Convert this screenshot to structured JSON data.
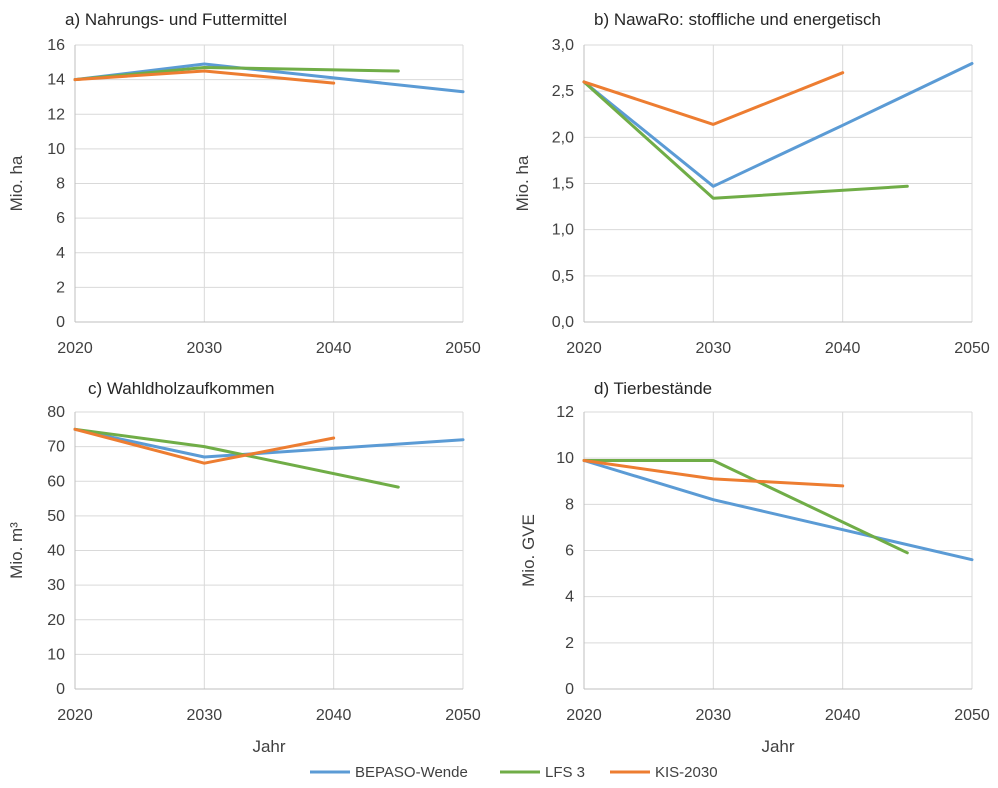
{
  "chart_data": [
    {
      "type": "line",
      "title": "a) Nahrungs- und Futtermittel",
      "ylabel": "Mio. ha",
      "xlabel": "",
      "xlim": [
        2020,
        2050
      ],
      "ylim": [
        0,
        16
      ],
      "xticks": [
        "2020",
        "2030",
        "2040",
        "2050"
      ],
      "yticks": [
        "0",
        "2",
        "4",
        "6",
        "8",
        "10",
        "12",
        "14",
        "16"
      ],
      "grid": true,
      "series": [
        {
          "name": "BEPASO-Wende",
          "x": [
            2020,
            2030,
            2040,
            2050
          ],
          "y": [
            14.0,
            14.9,
            14.1,
            13.3
          ]
        },
        {
          "name": "LFS 3",
          "x": [
            2020,
            2030,
            2045
          ],
          "y": [
            14.0,
            14.7,
            14.5
          ]
        },
        {
          "name": "KIS-2030",
          "x": [
            2020,
            2030,
            2040
          ],
          "y": [
            14.0,
            14.5,
            13.8
          ]
        }
      ]
    },
    {
      "type": "line",
      "title": "b) NawaRo: stoffliche und energetisch",
      "ylabel": "Mio. ha",
      "xlabel": "",
      "xlim": [
        2020,
        2050
      ],
      "ylim": [
        0,
        3
      ],
      "xticks": [
        "2020",
        "2030",
        "2040",
        "2050"
      ],
      "yticks": [
        "0,0",
        "0,5",
        "1,0",
        "1,5",
        "2,0",
        "2,5",
        "3,0"
      ],
      "grid": true,
      "series": [
        {
          "name": "BEPASO-Wende",
          "x": [
            2020,
            2030,
            2040,
            2050
          ],
          "y": [
            2.6,
            1.47,
            2.13,
            2.8
          ]
        },
        {
          "name": "LFS 3",
          "x": [
            2020,
            2030,
            2045
          ],
          "y": [
            2.6,
            1.34,
            1.47
          ]
        },
        {
          "name": "KIS-2030",
          "x": [
            2020,
            2030,
            2040
          ],
          "y": [
            2.6,
            2.14,
            2.7
          ]
        }
      ]
    },
    {
      "type": "line",
      "title": "c) Wahldholzaufkommen",
      "ylabel": "Mio. m³",
      "xlabel": "Jahr",
      "xlim": [
        2020,
        2050
      ],
      "ylim": [
        0,
        80
      ],
      "xticks": [
        "2020",
        "2030",
        "2040",
        "2050"
      ],
      "yticks": [
        "0",
        "10",
        "20",
        "30",
        "40",
        "50",
        "60",
        "70",
        "80"
      ],
      "grid": true,
      "series": [
        {
          "name": "BEPASO-Wende",
          "x": [
            2020,
            2030,
            2040,
            2050
          ],
          "y": [
            75,
            67,
            69.5,
            72
          ]
        },
        {
          "name": "LFS 3",
          "x": [
            2020,
            2030,
            2045
          ],
          "y": [
            75,
            70,
            58.3
          ]
        },
        {
          "name": "KIS-2030",
          "x": [
            2020,
            2030,
            2040
          ],
          "y": [
            75,
            65.2,
            72.5
          ]
        }
      ]
    },
    {
      "type": "line",
      "title": "d) Tierbestände",
      "ylabel": "Mio. GVE",
      "xlabel": "Jahr",
      "xlim": [
        2020,
        2050
      ],
      "ylim": [
        0,
        12
      ],
      "xticks": [
        "2020",
        "2030",
        "2040",
        "2050"
      ],
      "yticks": [
        "0",
        "2",
        "4",
        "6",
        "8",
        "10",
        "12"
      ],
      "grid": true,
      "series": [
        {
          "name": "BEPASO-Wende",
          "x": [
            2020,
            2030,
            2040,
            2050
          ],
          "y": [
            9.9,
            8.2,
            6.9,
            5.6
          ]
        },
        {
          "name": "LFS 3",
          "x": [
            2020,
            2030,
            2045
          ],
          "y": [
            9.9,
            9.9,
            5.9
          ]
        },
        {
          "name": "KIS-2030",
          "x": [
            2020,
            2030,
            2040
          ],
          "y": [
            9.9,
            9.1,
            8.8
          ]
        }
      ]
    }
  ],
  "legend": {
    "placement": "bottom-center",
    "items": [
      {
        "label": "BEPASO-Wende",
        "color": "#5b9bd5"
      },
      {
        "label": "LFS 3",
        "color": "#70ad47"
      },
      {
        "label": "KIS-2030",
        "color": "#ed7d31"
      }
    ]
  }
}
